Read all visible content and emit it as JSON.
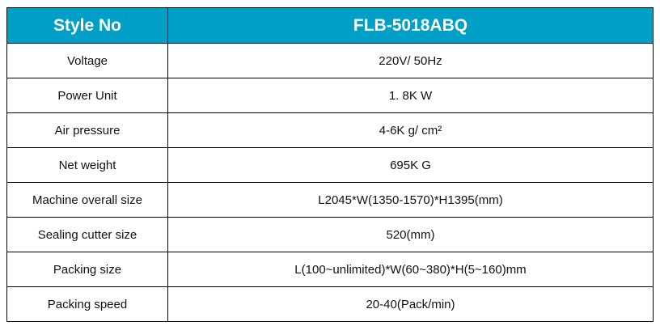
{
  "header": {
    "label": "Style No",
    "value": "FLB-5018ABQ"
  },
  "header_color": "#009fc6",
  "rows": [
    {
      "label": "Voltage",
      "value": "220V/ 50Hz"
    },
    {
      "label": "Power Unit",
      "value": "1. 8K W"
    },
    {
      "label": "Air pressure",
      "value": "4-6K g/ cm²"
    },
    {
      "label": "Net weight",
      "value": "695K G"
    },
    {
      "label": "Machine overall size",
      "value": "L2045*W(1350-1570)*H1395(mm)"
    },
    {
      "label": "Sealing cutter size",
      "value": "520(mm)"
    },
    {
      "label": "Packing size",
      "value": "L(100~unlimited)*W(60~380)*H(5~160)mm"
    },
    {
      "label": "Packing speed",
      "value": "20-40(Pack/min)"
    }
  ]
}
